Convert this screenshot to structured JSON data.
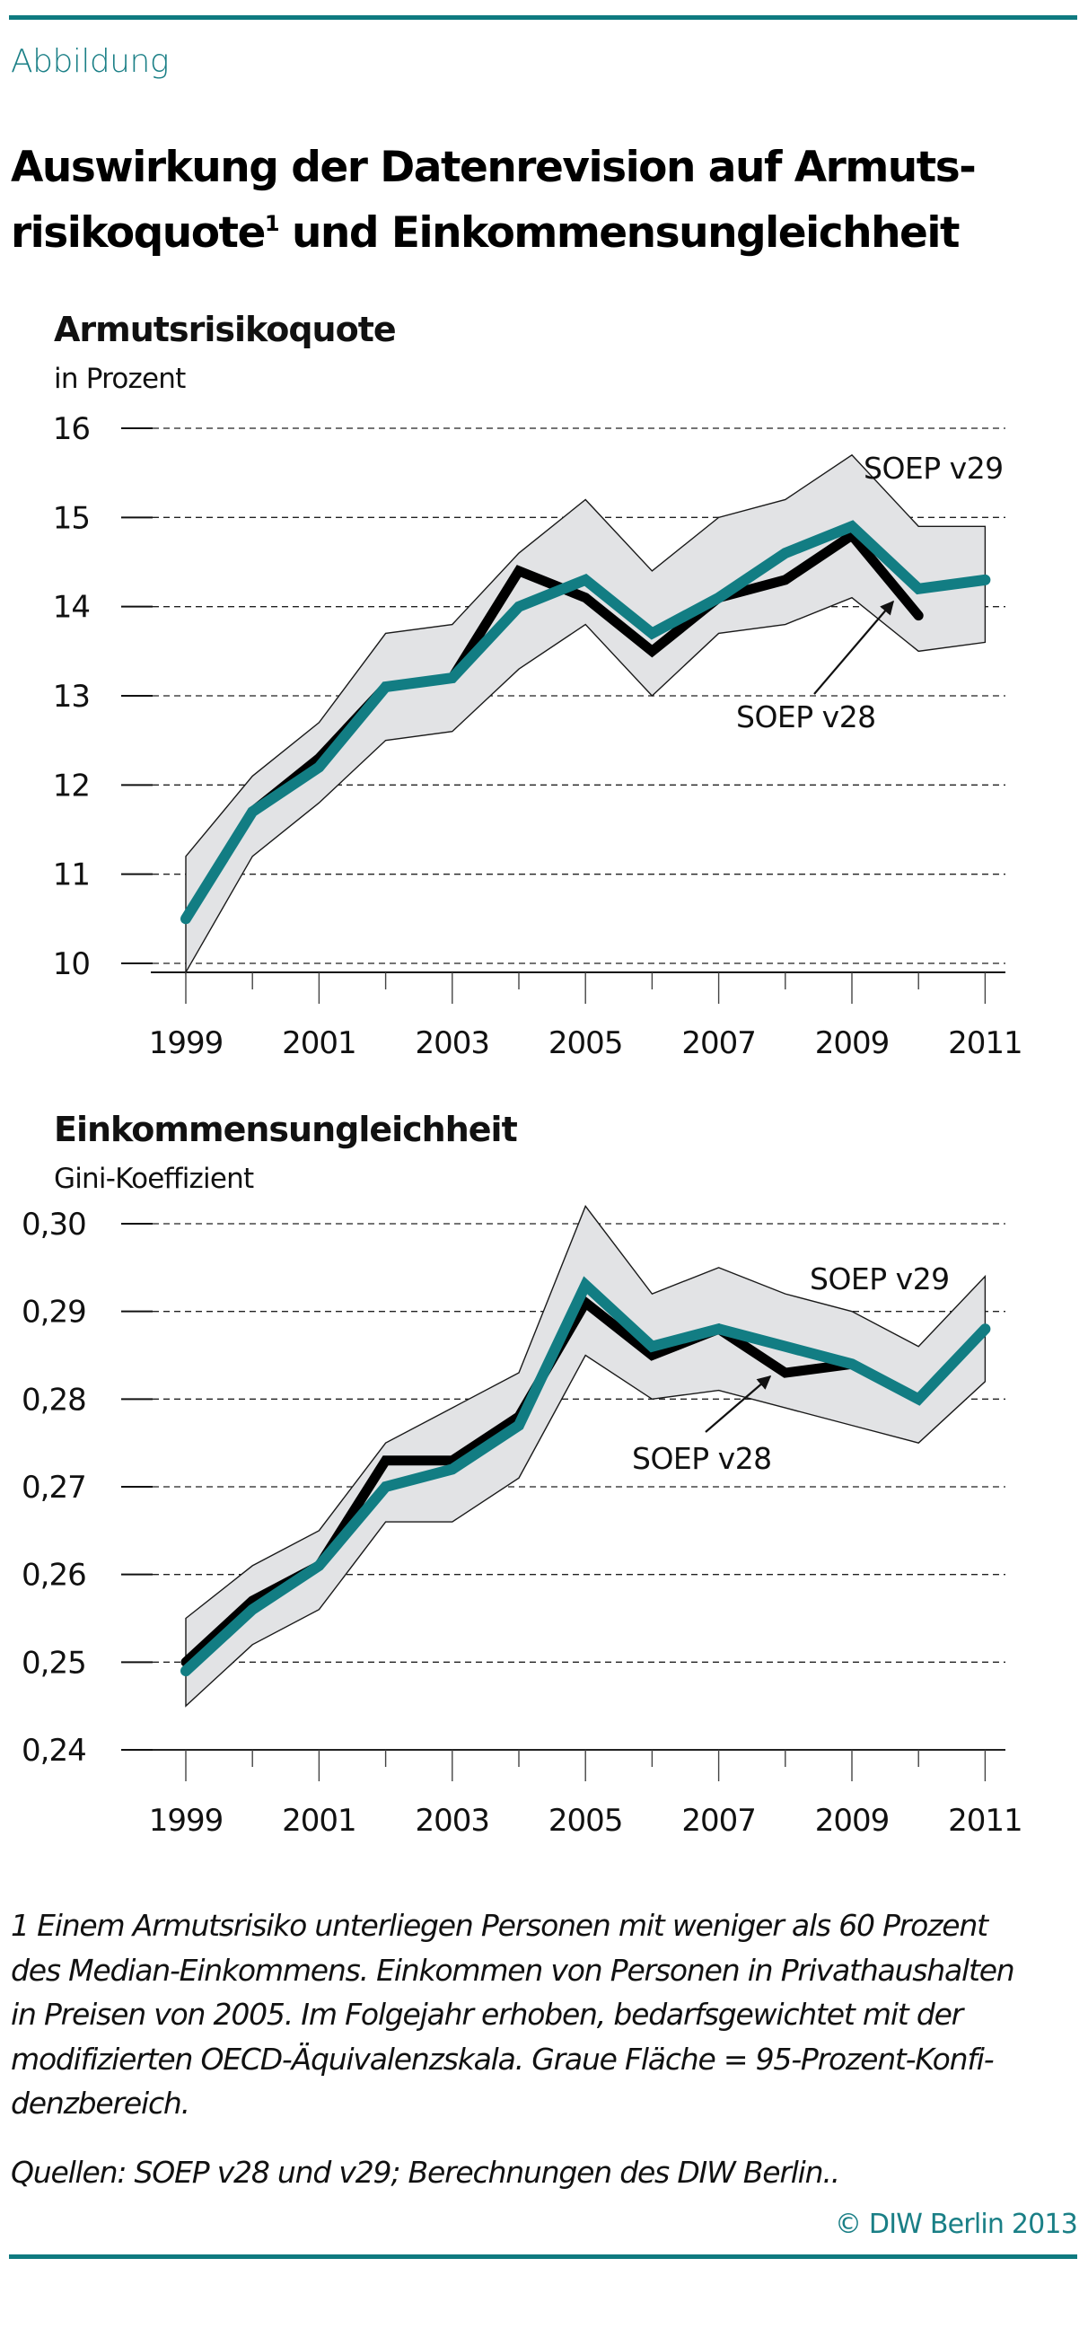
{
  "header": {
    "kicker": "Abbildung",
    "title_line1": "Auswirkung der Datenrevision auf Armuts-",
    "title_line2_a": "risikoquote",
    "title_sup": "1",
    "title_line2_b": " und Einkommensungleichheit"
  },
  "colors": {
    "accent": "#0f7a80",
    "v29_line": "#127d83",
    "v28_line": "#000000",
    "confidence_band": "#e2e3e5",
    "band_outline": "#1a1a1a",
    "gridline": "#222222"
  },
  "chart_data": [
    {
      "type": "line",
      "title": "Armutsrisikoquote",
      "ylabel": "in Prozent",
      "xlabel": "",
      "x": [
        1999,
        2000,
        2001,
        2002,
        2003,
        2004,
        2005,
        2006,
        2007,
        2008,
        2009,
        2010,
        2011
      ],
      "xtick_labels": [
        "1999",
        "2001",
        "2003",
        "2005",
        "2007",
        "2009",
        "2011"
      ],
      "xtick_label_years": [
        1999,
        2001,
        2003,
        2005,
        2007,
        2009,
        2011
      ],
      "ylim": [
        10,
        16
      ],
      "yticks": [
        10,
        11,
        12,
        13,
        14,
        15,
        16
      ],
      "ytick_labels": [
        "10",
        "11",
        "12",
        "13",
        "14",
        "15",
        "16"
      ],
      "grid": true,
      "series": [
        {
          "name": "SOEP v29",
          "values": [
            10.5,
            11.7,
            12.2,
            13.1,
            13.2,
            14.0,
            14.3,
            13.7,
            14.1,
            14.6,
            14.9,
            14.2,
            14.3
          ]
        },
        {
          "name": "SOEP v28",
          "values": [
            10.5,
            11.7,
            12.3,
            13.1,
            13.2,
            14.4,
            14.1,
            13.5,
            14.1,
            14.3,
            14.8,
            13.9,
            null
          ]
        }
      ],
      "confidence_band": {
        "name": "95-Prozent-Konfidenzbereich (SOEP v29)",
        "upper": [
          11.2,
          12.1,
          12.7,
          13.7,
          13.8,
          14.6,
          15.2,
          14.4,
          15.0,
          15.2,
          15.7,
          14.9,
          14.9
        ],
        "lower": [
          9.9,
          11.2,
          11.8,
          12.5,
          12.6,
          13.3,
          13.8,
          13.0,
          13.7,
          13.8,
          14.1,
          13.5,
          13.6
        ]
      },
      "annotations": [
        {
          "text": "SOEP v29",
          "target": "SOEP v29",
          "placement": "top-right"
        },
        {
          "text": "SOEP v28",
          "target": "SOEP v28",
          "placement": "below band near 2008",
          "arrow_to_year": 2009.8
        }
      ]
    },
    {
      "type": "line",
      "title": "Einkommensungleichheit",
      "ylabel": "Gini-Koeffizient",
      "xlabel": "",
      "x": [
        1999,
        2000,
        2001,
        2002,
        2003,
        2004,
        2005,
        2006,
        2007,
        2008,
        2009,
        2010,
        2011
      ],
      "xtick_labels": [
        "1999",
        "2001",
        "2003",
        "2005",
        "2007",
        "2009",
        "2011"
      ],
      "xtick_label_years": [
        1999,
        2001,
        2003,
        2005,
        2007,
        2009,
        2011
      ],
      "ylim": [
        0.24,
        0.3
      ],
      "yticks": [
        0.24,
        0.25,
        0.26,
        0.27,
        0.28,
        0.29,
        0.3
      ],
      "ytick_labels": [
        "0,24",
        "0,25",
        "0,26",
        "0,27",
        "0,28",
        "0,29",
        "0,30"
      ],
      "grid": true,
      "series": [
        {
          "name": "SOEP v29",
          "values": [
            0.249,
            0.256,
            0.261,
            0.27,
            0.272,
            0.277,
            0.293,
            0.286,
            0.288,
            0.286,
            0.284,
            0.28,
            0.288
          ]
        },
        {
          "name": "SOEP v28",
          "values": [
            0.25,
            0.257,
            0.261,
            0.273,
            0.273,
            0.278,
            0.291,
            0.285,
            0.288,
            0.283,
            0.284,
            null,
            null
          ]
        }
      ],
      "confidence_band": {
        "name": "95-Prozent-Konfidenzbereich (SOEP v29)",
        "upper": [
          0.255,
          0.261,
          0.265,
          0.275,
          0.279,
          0.283,
          0.302,
          0.292,
          0.295,
          0.292,
          0.29,
          0.286,
          0.294
        ],
        "lower": [
          0.245,
          0.252,
          0.256,
          0.266,
          0.266,
          0.271,
          0.285,
          0.28,
          0.281,
          0.279,
          0.277,
          0.275,
          0.282
        ]
      },
      "annotations": [
        {
          "text": "SOEP v29",
          "target": "SOEP v29",
          "placement": "top-right"
        },
        {
          "text": "SOEP v28",
          "target": "SOEP v28",
          "placement": "below band near 2006",
          "arrow_to_year": 2008
        }
      ]
    }
  ],
  "footnote": "1  Einem Armutsrisiko unterliegen Personen mit weniger als 60 Prozent des Median-Einkommens. Einkommen von Personen in Privathaushalten in Preisen von 2005. Im Folgejahr erhoben, bedarfsgewichtet mit der modifizierten OECD-Äquivalenzskala. Graue Fläche = 95-Prozent-Konfidenzbereich.",
  "footnote_lines": [
    "1  Einem Armutsrisiko unterliegen Personen mit weniger als 60 Prozent",
    "des Median-Einkommens. Einkommen von Personen in Privathaushalten",
    "in Preisen von 2005. Im Folgejahr erhoben, bedarfsgewichtet mit der",
    "modifizierten OECD-Äquivalenzskala. Graue Fläche = 95-Prozent-Konfi-",
    "denzbereich."
  ],
  "source": "Quellen: SOEP v28 und v29; Berechnungen des DIW Berlin..",
  "copyright": "© DIW Berlin 2013"
}
